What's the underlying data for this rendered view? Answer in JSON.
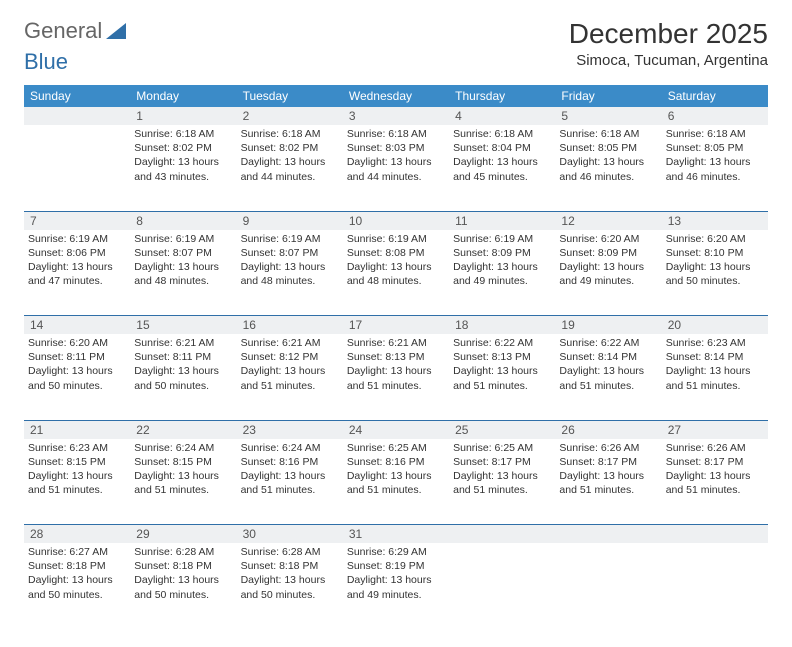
{
  "logo": {
    "general": "General",
    "blue": "Blue"
  },
  "title": "December 2025",
  "location": "Simoca, Tucuman, Argentina",
  "colors": {
    "header_bg": "#3b8bc8",
    "header_text": "#ffffff",
    "daynum_bg": "#eef0f2",
    "row_border": "#2f6fa8",
    "body_text": "#333333",
    "logo_gray": "#666666",
    "logo_blue": "#2f6fa8"
  },
  "weekdays": [
    "Sunday",
    "Monday",
    "Tuesday",
    "Wednesday",
    "Thursday",
    "Friday",
    "Saturday"
  ],
  "weeks": [
    {
      "nums": [
        "",
        "1",
        "2",
        "3",
        "4",
        "5",
        "6"
      ],
      "cells": [
        null,
        {
          "sunrise": "6:18 AM",
          "sunset": "8:02 PM",
          "daylight": "13 hours and 43 minutes."
        },
        {
          "sunrise": "6:18 AM",
          "sunset": "8:02 PM",
          "daylight": "13 hours and 44 minutes."
        },
        {
          "sunrise": "6:18 AM",
          "sunset": "8:03 PM",
          "daylight": "13 hours and 44 minutes."
        },
        {
          "sunrise": "6:18 AM",
          "sunset": "8:04 PM",
          "daylight": "13 hours and 45 minutes."
        },
        {
          "sunrise": "6:18 AM",
          "sunset": "8:05 PM",
          "daylight": "13 hours and 46 minutes."
        },
        {
          "sunrise": "6:18 AM",
          "sunset": "8:05 PM",
          "daylight": "13 hours and 46 minutes."
        }
      ]
    },
    {
      "nums": [
        "7",
        "8",
        "9",
        "10",
        "11",
        "12",
        "13"
      ],
      "cells": [
        {
          "sunrise": "6:19 AM",
          "sunset": "8:06 PM",
          "daylight": "13 hours and 47 minutes."
        },
        {
          "sunrise": "6:19 AM",
          "sunset": "8:07 PM",
          "daylight": "13 hours and 48 minutes."
        },
        {
          "sunrise": "6:19 AM",
          "sunset": "8:07 PM",
          "daylight": "13 hours and 48 minutes."
        },
        {
          "sunrise": "6:19 AM",
          "sunset": "8:08 PM",
          "daylight": "13 hours and 48 minutes."
        },
        {
          "sunrise": "6:19 AM",
          "sunset": "8:09 PM",
          "daylight": "13 hours and 49 minutes."
        },
        {
          "sunrise": "6:20 AM",
          "sunset": "8:09 PM",
          "daylight": "13 hours and 49 minutes."
        },
        {
          "sunrise": "6:20 AM",
          "sunset": "8:10 PM",
          "daylight": "13 hours and 50 minutes."
        }
      ]
    },
    {
      "nums": [
        "14",
        "15",
        "16",
        "17",
        "18",
        "19",
        "20"
      ],
      "cells": [
        {
          "sunrise": "6:20 AM",
          "sunset": "8:11 PM",
          "daylight": "13 hours and 50 minutes."
        },
        {
          "sunrise": "6:21 AM",
          "sunset": "8:11 PM",
          "daylight": "13 hours and 50 minutes."
        },
        {
          "sunrise": "6:21 AM",
          "sunset": "8:12 PM",
          "daylight": "13 hours and 51 minutes."
        },
        {
          "sunrise": "6:21 AM",
          "sunset": "8:13 PM",
          "daylight": "13 hours and 51 minutes."
        },
        {
          "sunrise": "6:22 AM",
          "sunset": "8:13 PM",
          "daylight": "13 hours and 51 minutes."
        },
        {
          "sunrise": "6:22 AM",
          "sunset": "8:14 PM",
          "daylight": "13 hours and 51 minutes."
        },
        {
          "sunrise": "6:23 AM",
          "sunset": "8:14 PM",
          "daylight": "13 hours and 51 minutes."
        }
      ]
    },
    {
      "nums": [
        "21",
        "22",
        "23",
        "24",
        "25",
        "26",
        "27"
      ],
      "cells": [
        {
          "sunrise": "6:23 AM",
          "sunset": "8:15 PM",
          "daylight": "13 hours and 51 minutes."
        },
        {
          "sunrise": "6:24 AM",
          "sunset": "8:15 PM",
          "daylight": "13 hours and 51 minutes."
        },
        {
          "sunrise": "6:24 AM",
          "sunset": "8:16 PM",
          "daylight": "13 hours and 51 minutes."
        },
        {
          "sunrise": "6:25 AM",
          "sunset": "8:16 PM",
          "daylight": "13 hours and 51 minutes."
        },
        {
          "sunrise": "6:25 AM",
          "sunset": "8:17 PM",
          "daylight": "13 hours and 51 minutes."
        },
        {
          "sunrise": "6:26 AM",
          "sunset": "8:17 PM",
          "daylight": "13 hours and 51 minutes."
        },
        {
          "sunrise": "6:26 AM",
          "sunset": "8:17 PM",
          "daylight": "13 hours and 51 minutes."
        }
      ]
    },
    {
      "nums": [
        "28",
        "29",
        "30",
        "31",
        "",
        "",
        ""
      ],
      "cells": [
        {
          "sunrise": "6:27 AM",
          "sunset": "8:18 PM",
          "daylight": "13 hours and 50 minutes."
        },
        {
          "sunrise": "6:28 AM",
          "sunset": "8:18 PM",
          "daylight": "13 hours and 50 minutes."
        },
        {
          "sunrise": "6:28 AM",
          "sunset": "8:18 PM",
          "daylight": "13 hours and 50 minutes."
        },
        {
          "sunrise": "6:29 AM",
          "sunset": "8:19 PM",
          "daylight": "13 hours and 49 minutes."
        },
        null,
        null,
        null
      ]
    }
  ],
  "labels": {
    "sunrise": "Sunrise: ",
    "sunset": "Sunset: ",
    "daylight": "Daylight: "
  }
}
